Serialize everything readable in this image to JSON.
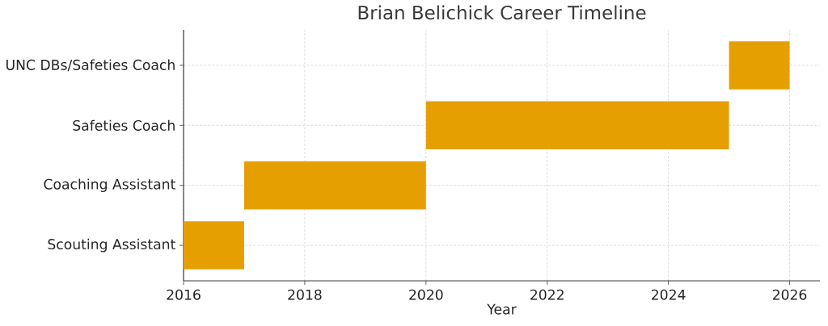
{
  "chart_data": {
    "type": "bar",
    "orientation": "horizontal",
    "title": "Brian Belichick Career Timeline",
    "xlabel": "Year",
    "categories": [
      "UNC DBs/Safeties Coach",
      "Safeties Coach",
      "Coaching Assistant",
      "Scouting Assistant"
    ],
    "base": [
      2025,
      2020,
      2017,
      2016
    ],
    "values": [
      1,
      5,
      3,
      1
    ],
    "color": "#e69f00",
    "xlim": [
      2016,
      2026.5
    ],
    "xticks": [
      2016,
      2018,
      2020,
      2022,
      2024,
      2026
    ],
    "grid": true
  }
}
